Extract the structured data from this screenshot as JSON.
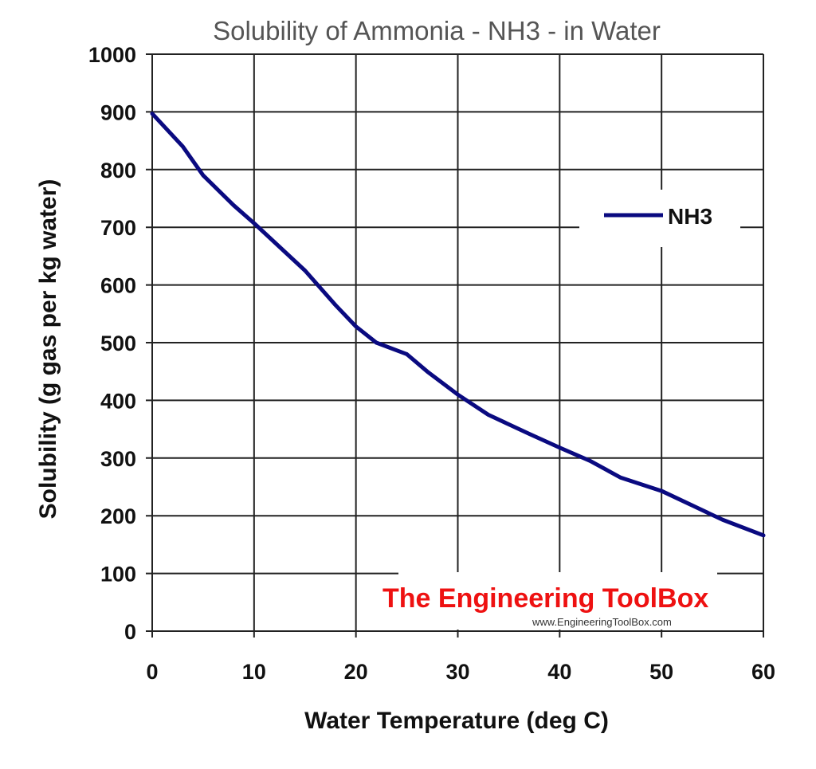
{
  "chart_data": {
    "type": "line",
    "title": "Solubility of Ammonia - NH3 - in Water",
    "xlabel": "Water Temperature (deg C)",
    "ylabel": "Solubility (g gas per kg water)",
    "xlim": [
      0,
      60
    ],
    "ylim": [
      0,
      1000
    ],
    "xticks": [
      0,
      10,
      20,
      30,
      40,
      50,
      60
    ],
    "yticks": [
      0,
      100,
      200,
      300,
      400,
      500,
      600,
      700,
      800,
      900,
      1000
    ],
    "x_tick_labels": [
      "0",
      "10",
      "20",
      "30",
      "40",
      "50",
      "60"
    ],
    "y_tick_labels": [
      "0",
      "100",
      "200",
      "300",
      "400",
      "500",
      "600",
      "700",
      "800",
      "900",
      "1000"
    ],
    "grid": true,
    "legend_position": "right",
    "series": [
      {
        "name": "NH3",
        "color": "#0a0a80",
        "x": [
          0,
          3,
          5,
          8,
          10,
          15,
          18,
          20,
          22,
          25,
          27,
          30,
          33,
          37,
          40,
          43,
          46,
          50,
          53,
          56,
          60
        ],
        "values": [
          897,
          840,
          790,
          738,
          707,
          625,
          565,
          528,
          500,
          480,
          450,
          410,
          375,
          342,
          318,
          295,
          266,
          243,
          218,
          193,
          166
        ]
      }
    ]
  },
  "watermark": {
    "title": "The Engineering ToolBox",
    "url": "www.EngineeringToolBox.com",
    "color": "#ee1111"
  }
}
